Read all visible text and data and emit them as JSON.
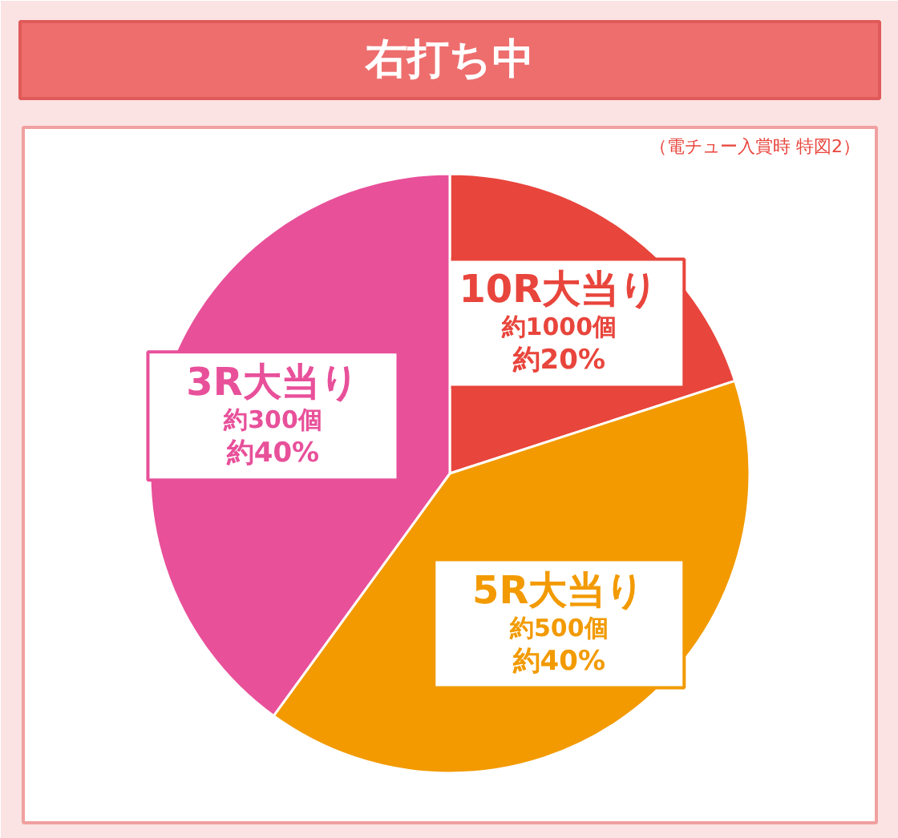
{
  "chart_data": {
    "type": "pie",
    "title": "右打ち中",
    "subtitle": "（電チュー入賞時 特図2）",
    "categories": [
      "10R大当り",
      "5R大当り",
      "3R大当り"
    ],
    "values": [
      20,
      40,
      40
    ],
    "colors": [
      "#e8453c",
      "#f29a00",
      "#e8509a"
    ],
    "value_labels": [
      "約20%",
      "約40%",
      "約40%"
    ],
    "annotations": [
      {
        "text": "約1000個",
        "x": "10R大当り"
      },
      {
        "text": "約500個",
        "x": "5R大当り"
      },
      {
        "text": "約300個",
        "x": "3R大当り"
      }
    ]
  }
}
